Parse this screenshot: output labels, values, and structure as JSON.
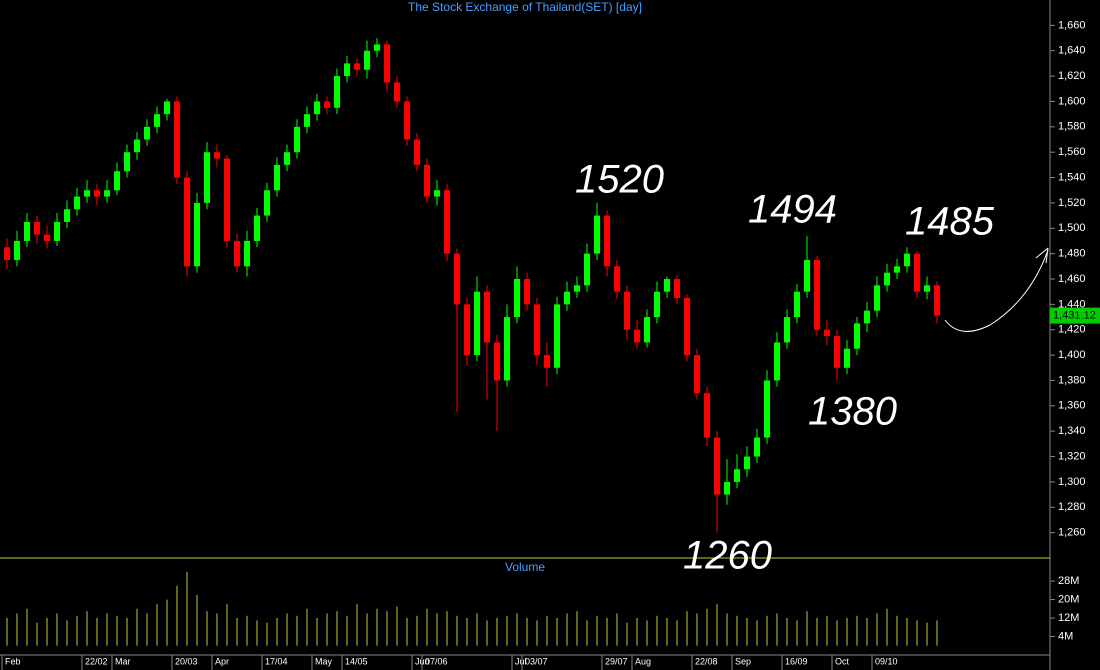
{
  "chart_data": {
    "type": "candlestick",
    "title": "The Stock Exchange of Thailand(SET) [day]",
    "volume_title": "Volume",
    "up_color": "#00ff00",
    "down_color": "#ff0000",
    "volume_color": "#c8c83c",
    "open": [
      1485,
      1475,
      1490,
      1505,
      1495,
      1490,
      1505,
      1515,
      1525,
      1530,
      1525,
      1530,
      1545,
      1560,
      1570,
      1580,
      1590,
      1600,
      1540,
      1470,
      1520,
      1560,
      1555,
      1490,
      1470,
      1490,
      1510,
      1530,
      1550,
      1560,
      1580,
      1590,
      1600,
      1595,
      1620,
      1630,
      1625,
      1640,
      1645,
      1615,
      1600,
      1570,
      1550,
      1525,
      1530,
      1480,
      1440,
      1400,
      1450,
      1410,
      1380,
      1430,
      1460,
      1440,
      1400,
      1390,
      1440,
      1450,
      1455,
      1480,
      1510,
      1470,
      1450,
      1420,
      1410,
      1430,
      1450,
      1460,
      1445,
      1400,
      1370,
      1335,
      1290,
      1300,
      1310,
      1320,
      1335,
      1380,
      1410,
      1430,
      1450,
      1475,
      1420,
      1415,
      1390,
      1405,
      1425,
      1435,
      1455,
      1465,
      1470,
      1480,
      1450,
      1455
    ],
    "high": [
      1492,
      1498,
      1512,
      1510,
      1502,
      1512,
      1522,
      1532,
      1538,
      1535,
      1538,
      1552,
      1566,
      1576,
      1586,
      1596,
      1602,
      1604,
      1545,
      1528,
      1568,
      1566,
      1558,
      1496,
      1498,
      1516,
      1536,
      1556,
      1566,
      1586,
      1596,
      1606,
      1604,
      1626,
      1636,
      1634,
      1648,
      1650,
      1648,
      1620,
      1604,
      1575,
      1555,
      1538,
      1535,
      1484,
      1445,
      1462,
      1455,
      1416,
      1440,
      1470,
      1465,
      1445,
      1410,
      1446,
      1458,
      1462,
      1488,
      1520,
      1514,
      1475,
      1455,
      1428,
      1436,
      1458,
      1462,
      1463,
      1448,
      1405,
      1375,
      1340,
      1318,
      1322,
      1328,
      1342,
      1388,
      1418,
      1436,
      1456,
      1494,
      1478,
      1428,
      1420,
      1412,
      1430,
      1442,
      1462,
      1472,
      1476,
      1485,
      1482,
      1462,
      1458
    ],
    "low": [
      1468,
      1470,
      1485,
      1488,
      1484,
      1486,
      1500,
      1510,
      1520,
      1518,
      1520,
      1526,
      1540,
      1554,
      1565,
      1575,
      1585,
      1535,
      1462,
      1465,
      1515,
      1548,
      1485,
      1465,
      1462,
      1485,
      1505,
      1525,
      1545,
      1555,
      1575,
      1585,
      1590,
      1590,
      1615,
      1620,
      1618,
      1635,
      1608,
      1595,
      1565,
      1545,
      1520,
      1518,
      1474,
      1355,
      1392,
      1395,
      1365,
      1340,
      1375,
      1425,
      1435,
      1392,
      1375,
      1385,
      1435,
      1445,
      1450,
      1475,
      1462,
      1444,
      1412,
      1405,
      1406,
      1425,
      1445,
      1440,
      1395,
      1365,
      1328,
      1260,
      1282,
      1295,
      1304,
      1315,
      1330,
      1375,
      1405,
      1425,
      1445,
      1415,
      1408,
      1380,
      1385,
      1400,
      1418,
      1430,
      1450,
      1460,
      1465,
      1445,
      1444,
      1425
    ],
    "close": [
      1475,
      1490,
      1505,
      1495,
      1490,
      1505,
      1515,
      1525,
      1530,
      1525,
      1530,
      1545,
      1560,
      1570,
      1580,
      1590,
      1600,
      1540,
      1470,
      1520,
      1560,
      1555,
      1490,
      1470,
      1490,
      1510,
      1530,
      1550,
      1560,
      1580,
      1590,
      1600,
      1595,
      1620,
      1630,
      1625,
      1640,
      1645,
      1615,
      1600,
      1570,
      1550,
      1525,
      1530,
      1480,
      1440,
      1400,
      1450,
      1410,
      1380,
      1430,
      1460,
      1440,
      1400,
      1390,
      1440,
      1450,
      1455,
      1480,
      1510,
      1470,
      1450,
      1420,
      1410,
      1430,
      1450,
      1460,
      1445,
      1400,
      1370,
      1335,
      1290,
      1300,
      1310,
      1320,
      1335,
      1380,
      1410,
      1430,
      1450,
      1475,
      1420,
      1415,
      1390,
      1405,
      1425,
      1435,
      1455,
      1465,
      1470,
      1480,
      1450,
      1455,
      1431.12
    ],
    "volume": [
      12,
      14,
      16,
      10,
      12,
      14,
      11,
      13,
      15,
      12,
      14,
      13,
      12,
      16,
      14,
      18,
      20,
      26,
      32,
      22,
      15,
      14,
      18,
      12,
      13,
      11,
      10,
      12,
      14,
      13,
      16,
      12,
      14,
      15,
      13,
      18,
      14,
      16,
      15,
      17,
      12,
      13,
      16,
      14,
      15,
      13,
      12,
      14,
      11,
      12,
      13,
      14,
      12,
      11,
      13,
      12,
      14,
      15,
      11,
      13,
      12,
      14,
      10,
      12,
      11,
      13,
      12,
      11,
      15,
      14,
      16,
      18,
      14,
      13,
      12,
      11,
      13,
      14,
      12,
      11,
      15,
      12,
      13,
      11,
      12,
      13,
      12,
      14,
      16,
      13,
      12,
      11,
      10,
      11
    ],
    "ylim": [
      1240,
      1680
    ],
    "yticks": [
      {
        "value": 1260,
        "label": "1,260"
      },
      {
        "value": 1280,
        "label": "1,280"
      },
      {
        "value": 1300,
        "label": "1,300"
      },
      {
        "value": 1320,
        "label": "1,320"
      },
      {
        "value": 1340,
        "label": "1,340"
      },
      {
        "value": 1360,
        "label": "1,360"
      },
      {
        "value": 1380,
        "label": "1,380"
      },
      {
        "value": 1400,
        "label": "1,400"
      },
      {
        "value": 1420,
        "label": "1,420"
      },
      {
        "value": 1440,
        "label": "1,440"
      },
      {
        "value": 1460,
        "label": "1,460"
      },
      {
        "value": 1480,
        "label": "1,480"
      },
      {
        "value": 1500,
        "label": "1,500"
      },
      {
        "value": 1520,
        "label": "1,520"
      },
      {
        "value": 1540,
        "label": "1,540"
      },
      {
        "value": 1560,
        "label": "1,560"
      },
      {
        "value": 1580,
        "label": "1,580"
      },
      {
        "value": 1600,
        "label": "1,600"
      },
      {
        "value": 1620,
        "label": "1,620"
      },
      {
        "value": 1640,
        "label": "1,640"
      },
      {
        "value": 1660,
        "label": "1,660"
      }
    ],
    "volume_ylim": [
      -4,
      38
    ],
    "volume_ticks": [
      {
        "value": 4,
        "label": "4M"
      },
      {
        "value": 12,
        "label": "12M"
      },
      {
        "value": 20,
        "label": "20M"
      },
      {
        "value": 28,
        "label": "28M"
      }
    ],
    "last_price": {
      "value": 1431.12,
      "label": "1,431.12"
    },
    "date_ticks": [
      {
        "value": 0,
        "label": "Feb"
      },
      {
        "value": 8,
        "label": "22/02"
      },
      {
        "value": 11,
        "label": "Mar"
      },
      {
        "value": 17,
        "label": "20/03"
      },
      {
        "value": 21,
        "label": "Apr"
      },
      {
        "value": 26,
        "label": "17/04"
      },
      {
        "value": 31,
        "label": "May"
      },
      {
        "value": 34,
        "label": "14/05"
      },
      {
        "value": 41,
        "label": "Jun"
      },
      {
        "value": 42,
        "label": "07/06"
      },
      {
        "value": 51,
        "label": "Jul"
      },
      {
        "value": 52,
        "label": "03/07"
      },
      {
        "value": 60,
        "label": "29/07"
      },
      {
        "value": 63,
        "label": "Aug"
      },
      {
        "value": 69,
        "label": "22/08"
      },
      {
        "value": 73,
        "label": "Sep"
      },
      {
        "value": 78,
        "label": "16/09"
      },
      {
        "value": 83,
        "label": "Oct"
      },
      {
        "value": 87,
        "label": "09/10"
      }
    ],
    "annotations": [
      "1520",
      "1494",
      "1485",
      "1380",
      "1260"
    ]
  }
}
